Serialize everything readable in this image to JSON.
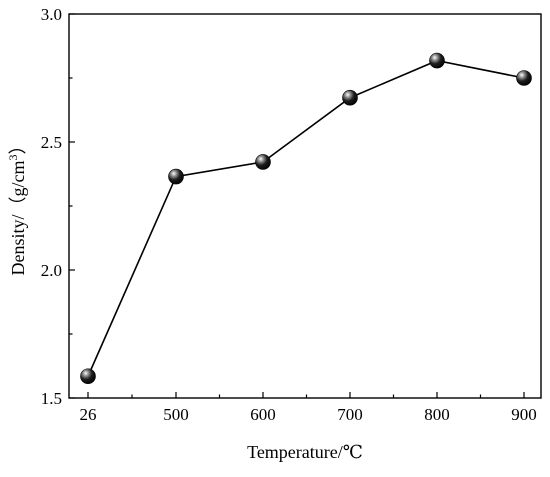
{
  "chart_data": {
    "type": "line",
    "xlabel": "Temperature/℃",
    "ylabel_main": "Density/（g/cm",
    "ylabel_sup": "3",
    "ylabel_close": "）",
    "categories": [
      "26",
      "500",
      "600",
      "700",
      "800",
      "900"
    ],
    "series": [
      {
        "values": [
          1.585,
          2.365,
          2.422,
          2.673,
          2.818,
          2.75
        ]
      }
    ],
    "ylim": [
      1.5,
      3.0
    ],
    "yticks": [
      1.5,
      2.0,
      2.5,
      3.0
    ],
    "ytick_labels": [
      "1.5",
      "2.0",
      "2.5",
      "3.0"
    ],
    "grid": false,
    "legend": "none",
    "colors": {
      "line": "#000000",
      "marker": "#000000",
      "marker_highlight": "#ffffff"
    }
  }
}
